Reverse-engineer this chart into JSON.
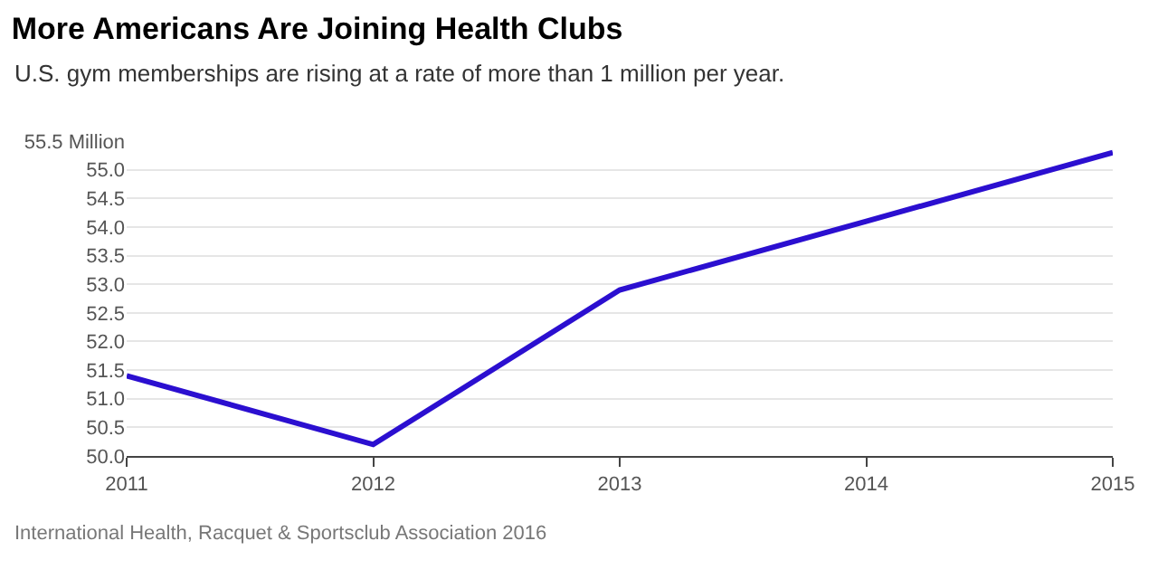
{
  "chart_data": {
    "type": "line",
    "title": "More Americans Are Joining Health Clubs",
    "subtitle": "U.S. gym memberships are rising at a rate of more than 1 million per year.",
    "x": [
      2011,
      2012,
      2013,
      2014,
      2015
    ],
    "series": [
      {
        "color": "#2b0fd0",
        "values": [
          51.4,
          50.2,
          52.9,
          54.1,
          55.3
        ]
      }
    ],
    "xlim": [
      2011,
      2015
    ],
    "xticks": [
      2011,
      2012,
      2013,
      2014,
      2015
    ],
    "ylim": [
      50,
      55.5
    ],
    "yticks": [
      {
        "value": 50,
        "label": "50.0"
      },
      {
        "value": 50.5,
        "label": "50.5"
      },
      {
        "value": 51,
        "label": "51.0"
      },
      {
        "value": 51.5,
        "label": "51.5"
      },
      {
        "value": 52,
        "label": "52.0"
      },
      {
        "value": 52.5,
        "label": "52.5"
      },
      {
        "value": 53,
        "label": "53.0"
      },
      {
        "value": 53.5,
        "label": "53.5"
      },
      {
        "value": 54,
        "label": "54.0"
      },
      {
        "value": 54.5,
        "label": "54.5"
      },
      {
        "value": 55,
        "label": "55.0"
      },
      {
        "value": 55.5,
        "label": "55.5 Million"
      }
    ],
    "grid": "y",
    "marker": "none",
    "line_style": "solid",
    "annotations": [
      "International Health, Racquet & Sportsclub Association 2016"
    ]
  }
}
